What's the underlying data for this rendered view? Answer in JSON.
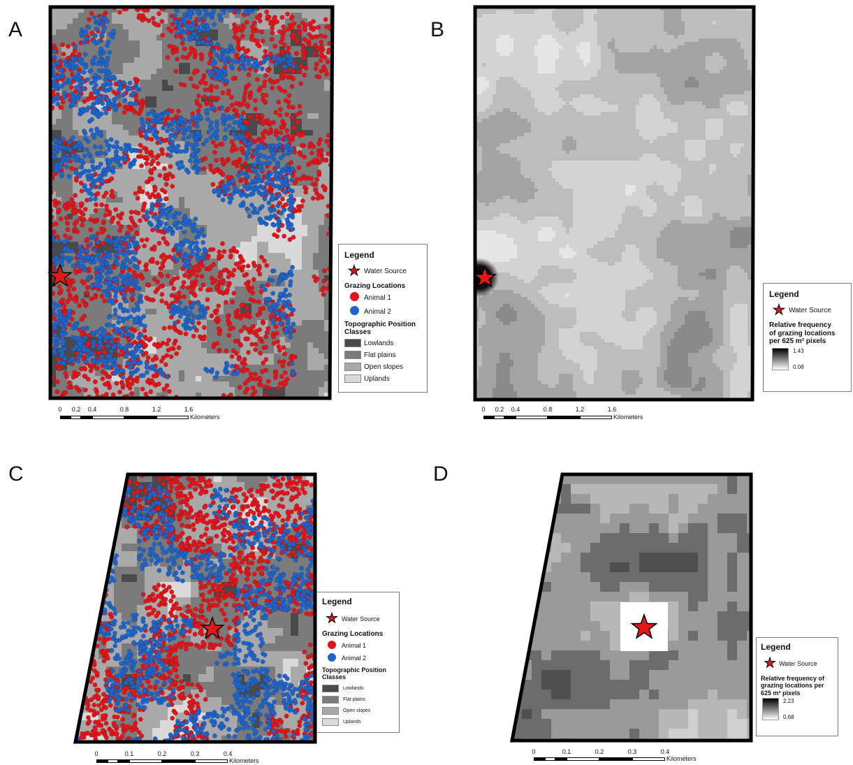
{
  "panels": {
    "A": {
      "letter": "A"
    },
    "B": {
      "letter": "B"
    },
    "C": {
      "letter": "C"
    },
    "D": {
      "letter": "D"
    }
  },
  "legend_A": {
    "title": "Legend",
    "water_source": "Water Source",
    "grazing_locations": "Grazing Locations",
    "animal1": "Animal 1",
    "animal2": "Animal 2",
    "topo_title": "Topographic Position Classes",
    "classes": [
      "Lowlands",
      "Flat plains",
      "Open slopes",
      "Uplands"
    ]
  },
  "legend_B": {
    "title": "Legend",
    "water_source": "Water Source",
    "freq_label_1": "Relative frequency",
    "freq_label_2": "of grazing locations",
    "freq_label_3": "per 625 m² pixels",
    "max": "1.43",
    "min": "0.08"
  },
  "legend_C": {
    "title": "Legend",
    "water_source": "Water Source",
    "grazing_locations": "Grazing Locations",
    "animal1": "Animal 1",
    "animal2": "Animal 2",
    "topo_title": "Topographic Position Classes",
    "classes": [
      "Lowlands",
      "Flat plains",
      "Open slopes",
      "Uplands"
    ]
  },
  "legend_D": {
    "title": "Legend",
    "water_source": "Water Source",
    "freq_label_1": "Relative frequency of",
    "freq_label_2": "grazing locations per",
    "freq_label_3": "625 m² pixels",
    "max": "2.23",
    "min": "0.68"
  },
  "scale_A": {
    "ticks": [
      "0",
      "0.2",
      "0.4",
      "0.8",
      "1.2",
      "1.6"
    ],
    "unit": "Kilometers"
  },
  "scale_B": {
    "ticks": [
      "0",
      "0.2",
      "0.4",
      "0.8",
      "1.2",
      "1.6"
    ],
    "unit": "Kilometers"
  },
  "scale_C": {
    "ticks": [
      "0",
      "0.1",
      "0.2",
      "0.3",
      "0.4"
    ],
    "unit": "Kilometers"
  },
  "scale_D": {
    "ticks": [
      "0",
      "0.1",
      "0.2",
      "0.3",
      "0.4"
    ],
    "unit": "Kilometers"
  },
  "colors": {
    "animal1": "#e0161b",
    "animal2": "#1f64c8",
    "star": "#e01818",
    "lowlands": "#4a4a4a",
    "flat_plains": "#7b7b7b",
    "open_slopes": "#a9a9a9",
    "uplands": "#dadada"
  }
}
